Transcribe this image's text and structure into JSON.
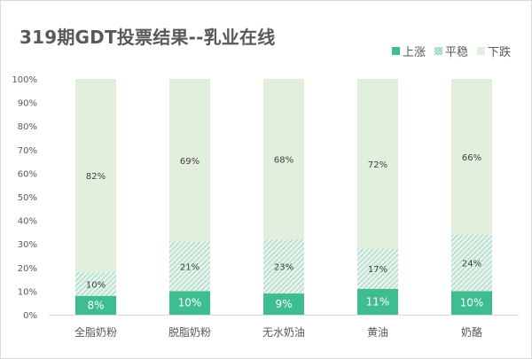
{
  "title": "319期GDT投票结果--乳业在线",
  "colors": {
    "up": "#3dbd90",
    "flat_bg": "#e6f3ec",
    "flat_hatch": "#7fc9aa",
    "down": "#e2efdc",
    "axis_text": "#595959",
    "value_on_dark": "#ffffff",
    "value_on_light": "#404040"
  },
  "legend": [
    {
      "key": "up",
      "label": "上涨"
    },
    {
      "key": "flat",
      "label": "平稳"
    },
    {
      "key": "down",
      "label": "下跌"
    }
  ],
  "chart_data": {
    "type": "bar",
    "stacked": true,
    "categories": [
      "全脂奶粉",
      "脱脂奶粉",
      "无水奶油",
      "黄油",
      "奶酪"
    ],
    "series": [
      {
        "name": "上涨",
        "values": [
          8,
          10,
          9,
          11,
          10
        ]
      },
      {
        "name": "平稳",
        "values": [
          10,
          21,
          23,
          17,
          24
        ]
      },
      {
        "name": "下跌",
        "values": [
          82,
          69,
          68,
          72,
          66
        ]
      }
    ],
    "ylim": [
      0,
      100
    ],
    "y_ticks": [
      "0%",
      "10%",
      "20%",
      "30%",
      "40%",
      "50%",
      "60%",
      "70%",
      "80%",
      "90%",
      "100%"
    ],
    "value_suffix": "%",
    "grid": false,
    "legend_position": "top-right"
  }
}
